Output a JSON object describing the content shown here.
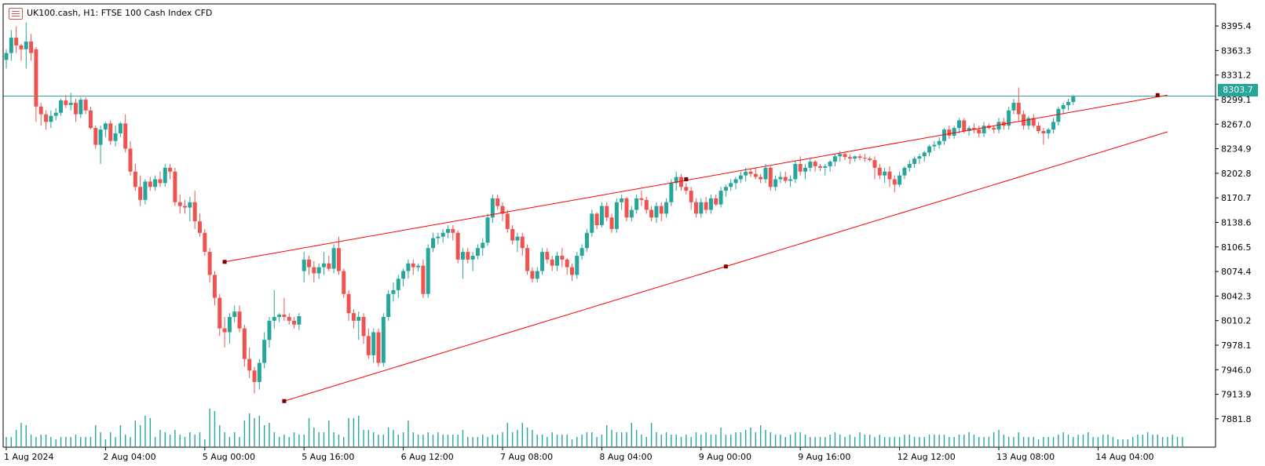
{
  "header": {
    "title": "UK100.cash, H1:  FTSE 100 Cash Index CFD",
    "icon": "chart-window-icon"
  },
  "colors": {
    "bull": "#26a69a",
    "bear": "#ef5350",
    "trendline": "#ff0000",
    "anchor": "#7f0000",
    "price_line": "#26a69a",
    "axis": "#000000",
    "background": "#ffffff"
  },
  "chart_data": {
    "type": "candlestick",
    "symbol": "UK100.cash",
    "timeframe": "H1",
    "description": "FTSE 100 Cash Index CFD",
    "current_price": "8303.7",
    "y_ticks": [
      "8395.4",
      "8363.3",
      "8331.2",
      "8299.1",
      "8267.0",
      "8234.9",
      "8202.8",
      "8170.7",
      "8138.6",
      "8106.5",
      "8074.4",
      "8042.3",
      "8010.2",
      "7978.1",
      "7946.0",
      "7913.9",
      "7881.8"
    ],
    "x_ticks": [
      "1 Aug 2024",
      "2 Aug 04:00",
      "5 Aug 00:00",
      "5 Aug 16:00",
      "6 Aug 12:00",
      "7 Aug 08:00",
      "8 Aug 04:00",
      "9 Aug 00:00",
      "9 Aug 16:00",
      "12 Aug 12:00",
      "13 Aug 08:00",
      "14 Aug 04:00"
    ],
    "x_tick_bar_index": [
      0,
      20,
      40,
      60,
      80,
      100,
      120,
      140,
      160,
      180,
      200,
      220
    ],
    "ylim": [
      7866.3,
      8411.9
    ],
    "candles": [
      [
        8351,
        8365,
        8340,
        8360
      ],
      [
        8360,
        8390,
        8350,
        8380
      ],
      [
        8380,
        8395,
        8360,
        8370
      ],
      [
        8370,
        8372,
        8350,
        8365
      ],
      [
        8365,
        8400,
        8340,
        8375
      ],
      [
        8375,
        8385,
        8350,
        8360
      ],
      [
        8365,
        8368,
        8270,
        8290
      ],
      [
        8290,
        8295,
        8265,
        8280
      ],
      [
        8280,
        8285,
        8260,
        8270
      ],
      [
        8270,
        8285,
        8262,
        8278
      ],
      [
        8278,
        8288,
        8272,
        8282
      ],
      [
        8282,
        8300,
        8278,
        8298
      ],
      [
        8298,
        8305,
        8288,
        8292
      ],
      [
        8292,
        8308,
        8285,
        8295
      ],
      [
        8295,
        8300,
        8270,
        8280
      ],
      [
        8280,
        8302,
        8275,
        8299
      ],
      [
        8299,
        8302,
        8280,
        8285
      ],
      [
        8285,
        8290,
        8260,
        8262
      ],
      [
        8262,
        8265,
        8235,
        8240
      ],
      [
        8240,
        8265,
        8215,
        8260
      ],
      [
        8260,
        8270,
        8250,
        8268
      ],
      [
        8268,
        8272,
        8240,
        8245
      ],
      [
        8245,
        8265,
        8238,
        8255
      ],
      [
        8255,
        8270,
        8250,
        8268
      ],
      [
        8268,
        8280,
        8230,
        8235
      ],
      [
        8235,
        8245,
        8200,
        8205
      ],
      [
        8205,
        8215,
        8180,
        8185
      ],
      [
        8185,
        8200,
        8160,
        8168
      ],
      [
        8168,
        8195,
        8162,
        8192
      ],
      [
        8192,
        8198,
        8180,
        8185
      ],
      [
        8185,
        8200,
        8180,
        8195
      ],
      [
        8195,
        8205,
        8185,
        8190
      ],
      [
        8190,
        8215,
        8185,
        8210
      ],
      [
        8210,
        8215,
        8195,
        8205
      ],
      [
        8205,
        8210,
        8160,
        8165
      ],
      [
        8165,
        8175,
        8150,
        8160
      ],
      [
        8160,
        8168,
        8150,
        8158
      ],
      [
        8158,
        8172,
        8140,
        8165
      ],
      [
        8165,
        8180,
        8130,
        8140
      ],
      [
        8140,
        8150,
        8120,
        8125
      ],
      [
        8125,
        8130,
        8095,
        8100
      ],
      [
        8100,
        8105,
        8060,
        8070
      ],
      [
        8070,
        8075,
        8030,
        8040
      ],
      [
        8040,
        8045,
        7990,
        8000
      ],
      [
        8000,
        8015,
        7975,
        7995
      ],
      [
        7995,
        8020,
        7980,
        8015
      ],
      [
        8015,
        8030,
        8008,
        8022
      ],
      [
        8022,
        8030,
        7995,
        8000
      ],
      [
        8000,
        8005,
        7950,
        7960
      ],
      [
        7960,
        7975,
        7935,
        7945
      ],
      [
        7945,
        7950,
        7915,
        7930
      ],
      [
        7930,
        7960,
        7920,
        7955
      ],
      [
        7955,
        7995,
        7948,
        7985
      ],
      [
        7985,
        8015,
        7975,
        8010
      ],
      [
        8010,
        8050,
        8000,
        8015
      ],
      [
        8015,
        8020,
        8008,
        8018
      ],
      [
        8018,
        8040,
        8010,
        8015
      ],
      [
        8015,
        8020,
        8005,
        8010
      ],
      [
        8010,
        8015,
        8000,
        8005
      ],
      [
        8005,
        8020,
        7998,
        8016
      ],
      [
        8075,
        8100,
        8060,
        8090
      ],
      [
        8090,
        8095,
        8070,
        8080
      ],
      [
        8080,
        8088,
        8060,
        8072
      ],
      [
        8072,
        8085,
        8065,
        8080
      ],
      [
        8080,
        8100,
        8070,
        8085
      ],
      [
        8085,
        8095,
        8075,
        8078
      ],
      [
        8078,
        8110,
        8072,
        8105
      ],
      [
        8105,
        8120,
        8070,
        8075
      ],
      [
        8075,
        8078,
        8040,
        8045
      ],
      [
        8045,
        8050,
        8010,
        8020
      ],
      [
        8020,
        8025,
        8000,
        8010
      ],
      [
        8010,
        8022,
        7985,
        8015
      ],
      [
        8015,
        8020,
        7980,
        7990
      ],
      [
        7990,
        8000,
        7960,
        7965
      ],
      [
        7965,
        8000,
        7955,
        7995
      ],
      [
        7995,
        8000,
        7950,
        7955
      ],
      [
        7955,
        8020,
        7950,
        8015
      ],
      [
        8015,
        8050,
        8010,
        8045
      ],
      [
        8045,
        8060,
        8035,
        8050
      ],
      [
        8050,
        8070,
        8040,
        8065
      ],
      [
        8065,
        8078,
        8055,
        8075
      ],
      [
        8075,
        8090,
        8065,
        8085
      ],
      [
        8085,
        8090,
        8070,
        8080
      ],
      [
        8080,
        8085,
        8075,
        8082
      ],
      [
        8082,
        8090,
        8040,
        8045
      ],
      [
        8045,
        8110,
        8040,
        8105
      ],
      [
        8105,
        8125,
        8100,
        8118
      ],
      [
        8118,
        8125,
        8110,
        8120
      ],
      [
        8120,
        8130,
        8112,
        8125
      ],
      [
        8125,
        8135,
        8118,
        8130
      ],
      [
        8130,
        8135,
        8115,
        8125
      ],
      [
        8125,
        8128,
        8085,
        8090
      ],
      [
        8090,
        8105,
        8065,
        8100
      ],
      [
        8100,
        8105,
        8085,
        8090
      ],
      [
        8090,
        8100,
        8075,
        8095
      ],
      [
        8095,
        8110,
        8090,
        8105
      ],
      [
        8105,
        8118,
        8095,
        8112
      ],
      [
        8112,
        8150,
        8108,
        8145
      ],
      [
        8145,
        8175,
        8138,
        8170
      ],
      [
        8170,
        8175,
        8155,
        8160
      ],
      [
        8160,
        8165,
        8140,
        8150
      ],
      [
        8150,
        8155,
        8125,
        8130
      ],
      [
        8130,
        8135,
        8110,
        8115
      ],
      [
        8115,
        8125,
        8100,
        8120
      ],
      [
        8120,
        8125,
        8095,
        8105
      ],
      [
        8105,
        8110,
        8070,
        8075
      ],
      [
        8075,
        8080,
        8060,
        8065
      ],
      [
        8065,
        8080,
        8060,
        8075
      ],
      [
        8075,
        8105,
        8070,
        8100
      ],
      [
        8100,
        8105,
        8085,
        8090
      ],
      [
        8090,
        8095,
        8075,
        8082
      ],
      [
        8082,
        8100,
        8075,
        8095
      ],
      [
        8095,
        8105,
        8080,
        8090
      ],
      [
        8090,
        8092,
        8070,
        8080
      ],
      [
        8080,
        8085,
        8062,
        8070
      ],
      [
        8070,
        8100,
        8065,
        8095
      ],
      [
        8095,
        8110,
        8090,
        8105
      ],
      [
        8105,
        8130,
        8100,
        8125
      ],
      [
        8125,
        8155,
        8120,
        8150
      ],
      [
        8150,
        8152,
        8130,
        8135
      ],
      [
        8135,
        8165,
        8132,
        8160
      ],
      [
        8160,
        8165,
        8140,
        8145
      ],
      [
        8145,
        8150,
        8125,
        8130
      ],
      [
        8130,
        8170,
        8125,
        8165
      ],
      [
        8165,
        8175,
        8155,
        8170
      ],
      [
        8170,
        8172,
        8140,
        8145
      ],
      [
        8145,
        8160,
        8140,
        8155
      ],
      [
        8155,
        8175,
        8150,
        8170
      ],
      [
        8170,
        8180,
        8160,
        8168
      ],
      [
        8168,
        8172,
        8150,
        8155
      ],
      [
        8155,
        8160,
        8140,
        8145
      ],
      [
        8145,
        8165,
        8138,
        8160
      ],
      [
        8160,
        8165,
        8140,
        8150
      ],
      [
        8150,
        8170,
        8145,
        8165
      ],
      [
        8165,
        8195,
        8160,
        8190
      ],
      [
        8190,
        8205,
        8180,
        8198
      ],
      [
        8198,
        8202,
        8180,
        8185
      ],
      [
        8185,
        8190,
        8175,
        8180
      ],
      [
        8180,
        8185,
        8155,
        8165
      ],
      [
        8165,
        8170,
        8145,
        8150
      ],
      [
        8150,
        8170,
        8145,
        8165
      ],
      [
        8165,
        8172,
        8150,
        8155
      ],
      [
        8155,
        8175,
        8150,
        8170
      ],
      [
        8170,
        8175,
        8160,
        8162
      ],
      [
        8162,
        8185,
        8158,
        8180
      ],
      [
        8180,
        8188,
        8172,
        8185
      ],
      [
        8185,
        8195,
        8180,
        8190
      ],
      [
        8190,
        8198,
        8182,
        8195
      ],
      [
        8195,
        8205,
        8190,
        8200
      ],
      [
        8200,
        8210,
        8192,
        8205
      ],
      [
        8205,
        8208,
        8198,
        8202
      ],
      [
        8202,
        8210,
        8195,
        8198
      ],
      [
        8198,
        8202,
        8190,
        8195
      ],
      [
        8195,
        8215,
        8190,
        8210
      ],
      [
        8210,
        8212,
        8180,
        8185
      ],
      [
        8185,
        8200,
        8180,
        8195
      ],
      [
        8195,
        8205,
        8190,
        8198
      ],
      [
        8198,
        8205,
        8190,
        8193
      ],
      [
        8193,
        8200,
        8185,
        8195
      ],
      [
        8195,
        8220,
        8190,
        8215
      ],
      [
        8215,
        8225,
        8200,
        8205
      ],
      [
        8205,
        8215,
        8195,
        8210
      ],
      [
        8210,
        8222,
        8205,
        8218
      ],
      [
        8218,
        8220,
        8205,
        8212
      ],
      [
        8212,
        8215,
        8206,
        8210
      ],
      [
        8210,
        8215,
        8200,
        8212
      ],
      [
        8212,
        8220,
        8205,
        8218
      ],
      [
        8218,
        8228,
        8212,
        8225
      ],
      [
        8225,
        8232,
        8218,
        8228
      ],
      [
        8228,
        8230,
        8220,
        8224
      ],
      [
        8224,
        8228,
        8215,
        8222
      ],
      [
        8222,
        8226,
        8218,
        8225
      ],
      [
        8225,
        8228,
        8220,
        8223
      ],
      [
        8223,
        8228,
        8218,
        8222
      ],
      [
        8222,
        8225,
        8218,
        8220
      ],
      [
        8220,
        8225,
        8195,
        8210
      ],
      [
        8210,
        8215,
        8195,
        8200
      ],
      [
        8200,
        8210,
        8190,
        8205
      ],
      [
        8205,
        8212,
        8185,
        8195
      ],
      [
        8195,
        8200,
        8178,
        8188
      ],
      [
        8188,
        8205,
        8185,
        8200
      ],
      [
        8200,
        8212,
        8195,
        8210
      ],
      [
        8210,
        8220,
        8205,
        8215
      ],
      [
        8215,
        8225,
        8210,
        8222
      ],
      [
        8222,
        8228,
        8215,
        8225
      ],
      [
        8225,
        8232,
        8218,
        8230
      ],
      [
        8230,
        8240,
        8225,
        8238
      ],
      [
        8238,
        8245,
        8232,
        8240
      ],
      [
        8240,
        8250,
        8235,
        8245
      ],
      [
        8245,
        8262,
        8240,
        8260
      ],
      [
        8260,
        8265,
        8248,
        8252
      ],
      [
        8252,
        8265,
        8248,
        8262
      ],
      [
        8262,
        8275,
        8255,
        8272
      ],
      [
        8272,
        8275,
        8255,
        8258
      ],
      [
        8258,
        8265,
        8252,
        8262
      ],
      [
        8262,
        8268,
        8255,
        8260
      ],
      [
        8260,
        8265,
        8250,
        8255
      ],
      [
        8255,
        8270,
        8250,
        8265
      ],
      [
        8265,
        8268,
        8260,
        8262
      ],
      [
        8262,
        8265,
        8255,
        8260
      ],
      [
        8260,
        8275,
        8255,
        8270
      ],
      [
        8270,
        8275,
        8260,
        8265
      ],
      [
        8265,
        8290,
        8260,
        8285
      ],
      [
        8285,
        8300,
        8280,
        8295
      ],
      [
        8295,
        8315,
        8270,
        8280
      ],
      [
        8280,
        8285,
        8260,
        8265
      ],
      [
        8265,
        8278,
        8260,
        8275
      ],
      [
        8275,
        8280,
        8262,
        8265
      ],
      [
        8265,
        8270,
        8255,
        8258
      ],
      [
        8258,
        8262,
        8240,
        8255
      ],
      [
        8255,
        8262,
        8248,
        8260
      ],
      [
        8260,
        8275,
        8255,
        8270
      ],
      [
        8270,
        8290,
        8265,
        8287
      ],
      [
        8287,
        8295,
        8280,
        8292
      ],
      [
        8292,
        8300,
        8285,
        8296
      ],
      [
        8296,
        8305,
        8292,
        8303
      ]
    ],
    "volume_scale": [
      4,
      4,
      7,
      10,
      9,
      5,
      4,
      5,
      5,
      4,
      3,
      4,
      4,
      4,
      5,
      4,
      4,
      4,
      9,
      6,
      3,
      6,
      4,
      9,
      5,
      4,
      11,
      9,
      13,
      12,
      4,
      7,
      6,
      5,
      7,
      5,
      4,
      6,
      5,
      6,
      3,
      16,
      15,
      9,
      6,
      4,
      6,
      4,
      11,
      14,
      12,
      13,
      9,
      10,
      6,
      4,
      5,
      4,
      6,
      5,
      5,
      12,
      8,
      6,
      6,
      11,
      6,
      5,
      4,
      12,
      12,
      13,
      7,
      7,
      6,
      5,
      5,
      8,
      7,
      5,
      6,
      11,
      6,
      5,
      5,
      6,
      5,
      6,
      5,
      5,
      5,
      5,
      7,
      4,
      4,
      4,
      5,
      4,
      5,
      5,
      6,
      10,
      6,
      7,
      10,
      8,
      7,
      5,
      5,
      4,
      6,
      5,
      5,
      5,
      3,
      4,
      5,
      6,
      6,
      4,
      5,
      9,
      7,
      6,
      6,
      6,
      10,
      7,
      5,
      4,
      10,
      6,
      5,
      6,
      5,
      5,
      4,
      5,
      4,
      6,
      5,
      6,
      5,
      5,
      8,
      5,
      5,
      6,
      6,
      7,
      8,
      6,
      9,
      7,
      6,
      5,
      5,
      4,
      5,
      6,
      6,
      5,
      4,
      4,
      4,
      4,
      5,
      6,
      5,
      4,
      5,
      4,
      6,
      5,
      5,
      4,
      5,
      4,
      4,
      4,
      4,
      5,
      5,
      4,
      4,
      4,
      5,
      5,
      5,
      5,
      4,
      4,
      5,
      5,
      6,
      5,
      4,
      4,
      4,
      6,
      7,
      5,
      4,
      4,
      6,
      4,
      4,
      4,
      3,
      4,
      4,
      4,
      5,
      6,
      5,
      4,
      5,
      5,
      6,
      4,
      4,
      5,
      5,
      4,
      3,
      3,
      3,
      4,
      5,
      5,
      6,
      5,
      5,
      4,
      4,
      5,
      4,
      4
    ],
    "trendlines": [
      {
        "from": {
          "bar": 44,
          "price": 8087
        },
        "to": {
          "bar": 234,
          "price": 8305
        }
      },
      {
        "from": {
          "bar": 56,
          "price": 7905
        },
        "to": {
          "bar": 234,
          "price": 8257
        }
      }
    ],
    "anchors": [
      {
        "bar": 44,
        "price": 8087
      },
      {
        "bar": 137,
        "price": 8195
      },
      {
        "bar": 56,
        "price": 7905
      },
      {
        "bar": 145,
        "price": 8081
      },
      {
        "bar": 232,
        "price": 8305
      }
    ],
    "grid": false,
    "legend": "none"
  }
}
